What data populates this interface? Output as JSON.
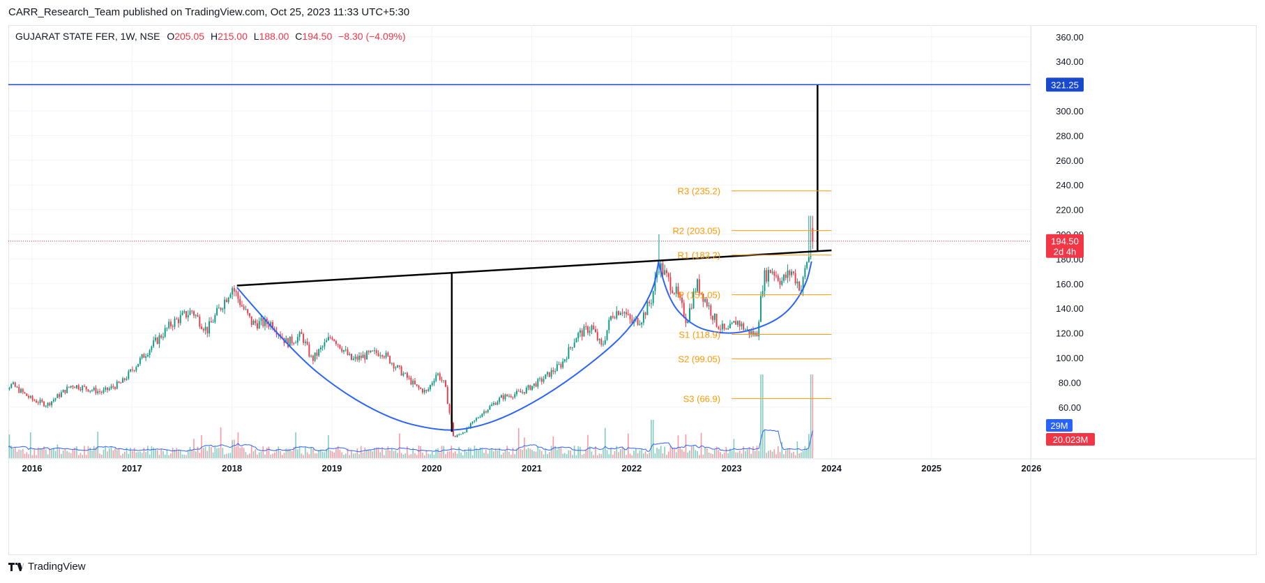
{
  "header": {
    "publish_line": "CARR_Research_Team published on TradingView.com, Oct 25, 2023 11:33 UTC+5:30"
  },
  "legend": {
    "symbol": "GUJARAT STATE FER, 1W, NSE",
    "o_label": "O",
    "o_value": "205.05",
    "h_label": "H",
    "h_value": "215.00",
    "l_label": "L",
    "l_value": "188.00",
    "c_label": "C",
    "c_value": "194.50",
    "change": "−8.30 (−4.09%)"
  },
  "footer": {
    "brand": "TradingView"
  },
  "colors": {
    "up": "#089981",
    "down": "#f23645",
    "pivot": "#ff9800",
    "target_line": "#1848cc",
    "cup": "#2962ff",
    "neckline": "#000000",
    "volume_ma": "#2962ff",
    "grid": "#f0f3fa",
    "axis_text": "#131722"
  },
  "chart_data": {
    "type": "candlestick",
    "y_axis": {
      "range": [
        0,
        375
      ],
      "ticks": [
        "360.00",
        "340.00",
        "320.00",
        "300.00",
        "280.00",
        "260.00",
        "240.00",
        "220.00",
        "200.00",
        "180.00",
        "160.00",
        "140.00",
        "120.00",
        "100.00",
        "80.00",
        "60.00"
      ]
    },
    "x_axis": {
      "range": [
        "2015-08",
        "2026-08"
      ],
      "ticks": [
        {
          "label": "2016",
          "year": 2016.0
        },
        {
          "label": "2017",
          "year": 2017.0
        },
        {
          "label": "2018",
          "year": 2018.0
        },
        {
          "label": "2019",
          "year": 2019.0
        },
        {
          "label": "2020",
          "year": 2020.0
        },
        {
          "label": "2021",
          "year": 2021.0
        },
        {
          "label": "2022",
          "year": 2022.0
        },
        {
          "label": "2023",
          "year": 2023.0
        },
        {
          "label": "2024",
          "year": 2024.0
        },
        {
          "label": "2025",
          "year": 2025.0
        },
        {
          "label": "2026",
          "year": 2026.0
        }
      ]
    },
    "price_path": [
      [
        2015.6,
        72
      ],
      [
        2015.8,
        78
      ],
      [
        2016.0,
        66
      ],
      [
        2016.15,
        62
      ],
      [
        2016.4,
        78
      ],
      [
        2016.7,
        72
      ],
      [
        2016.9,
        80
      ],
      [
        2017.15,
        105
      ],
      [
        2017.4,
        128
      ],
      [
        2017.6,
        138
      ],
      [
        2017.75,
        122
      ],
      [
        2017.95,
        150
      ],
      [
        2018.0,
        158
      ],
      [
        2018.1,
        142
      ],
      [
        2018.2,
        128
      ],
      [
        2018.4,
        128
      ],
      [
        2018.55,
        112
      ],
      [
        2018.7,
        118
      ],
      [
        2018.8,
        98
      ],
      [
        2019.0,
        118
      ],
      [
        2019.2,
        98
      ],
      [
        2019.35,
        102
      ],
      [
        2019.5,
        105
      ],
      [
        2019.65,
        92
      ],
      [
        2019.85,
        76
      ],
      [
        2019.95,
        72
      ],
      [
        2020.05,
        88
      ],
      [
        2020.13,
        78
      ],
      [
        2020.22,
        35
      ],
      [
        2020.35,
        42
      ],
      [
        2020.5,
        55
      ],
      [
        2020.7,
        68
      ],
      [
        2020.9,
        72
      ],
      [
        2021.1,
        82
      ],
      [
        2021.3,
        95
      ],
      [
        2021.45,
        118
      ],
      [
        2021.6,
        125
      ],
      [
        2021.7,
        108
      ],
      [
        2021.8,
        135
      ],
      [
        2021.9,
        140
      ],
      [
        2022.0,
        128
      ],
      [
        2022.1,
        132
      ],
      [
        2022.2,
        148
      ],
      [
        2022.27,
        176
      ],
      [
        2022.35,
        165
      ],
      [
        2022.45,
        152
      ],
      [
        2022.55,
        130
      ],
      [
        2022.65,
        160
      ],
      [
        2022.75,
        145
      ],
      [
        2022.85,
        128
      ],
      [
        2022.95,
        120
      ],
      [
        2023.05,
        130
      ],
      [
        2023.15,
        122
      ],
      [
        2023.25,
        118
      ],
      [
        2023.32,
        165
      ],
      [
        2023.4,
        172
      ],
      [
        2023.5,
        162
      ],
      [
        2023.6,
        170
      ],
      [
        2023.7,
        155
      ],
      [
        2023.75,
        178
      ],
      [
        2023.8,
        185
      ],
      [
        2023.82,
        194.5
      ]
    ],
    "volume": {
      "last_label": "20.023M",
      "ma_label": "29M"
    },
    "price_marker": {
      "value": 194.5,
      "label": "194.50",
      "countdown": "2d 4h"
    },
    "target": {
      "value": 321.25,
      "label": "321.25"
    },
    "pivots": [
      {
        "label": "R3 (235.2)",
        "value": 235.2
      },
      {
        "label": "R2 (203.05)",
        "value": 203.05
      },
      {
        "label": "R1 (183.2)",
        "value": 183.2
      },
      {
        "label": "P (151.05)",
        "value": 151.05
      },
      {
        "label": "S1 (118.9)",
        "value": 118.9
      },
      {
        "label": "S2 (99.05)",
        "value": 99.05
      },
      {
        "label": "S3 (66.9)",
        "value": 66.9
      }
    ],
    "pivot_span": [
      2023.0,
      2024.0
    ],
    "neckline": [
      [
        2018.05,
        158.5
      ],
      [
        2024.0,
        187
      ]
    ],
    "big_cup": [
      [
        2018.05,
        157
      ],
      [
        2018.6,
        105
      ],
      [
        2019.1,
        72
      ],
      [
        2019.6,
        50
      ],
      [
        2020.0,
        42
      ],
      [
        2020.3,
        41
      ],
      [
        2020.7,
        50
      ],
      [
        2021.2,
        72
      ],
      [
        2021.7,
        102
      ],
      [
        2022.0,
        125
      ],
      [
        2022.22,
        155
      ],
      [
        2022.27,
        178
      ]
    ],
    "handle_cup": [
      [
        2022.27,
        178
      ],
      [
        2022.35,
        148
      ],
      [
        2022.6,
        126
      ],
      [
        2022.85,
        120
      ],
      [
        2023.1,
        120
      ],
      [
        2023.4,
        128
      ],
      [
        2023.6,
        140
      ],
      [
        2023.75,
        160
      ],
      [
        2023.8,
        178
      ]
    ],
    "depth_line": {
      "x": 2020.2,
      "from": 169,
      "to": 40
    },
    "target_line": {
      "x": 2023.86,
      "from": 187,
      "to": 321.25
    }
  }
}
